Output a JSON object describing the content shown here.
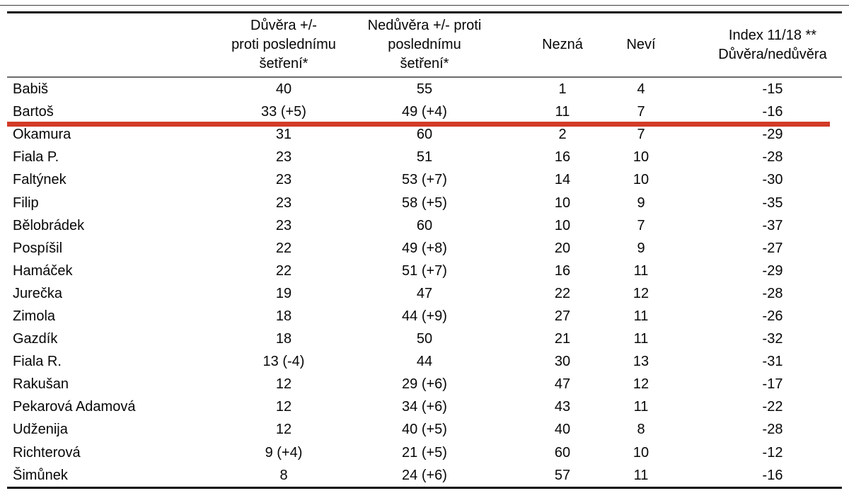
{
  "accent_color": "#d23b27",
  "chart_data": {
    "type": "table",
    "columns": [
      {
        "id": "name",
        "label_lines": [
          ""
        ]
      },
      {
        "id": "duvera",
        "label_lines": [
          "Důvěra +/-",
          "proti poslednímu",
          "šetření*"
        ]
      },
      {
        "id": "neduvera",
        "label_lines": [
          "Nedůvěra +/- proti",
          "poslednímu",
          "šetření*"
        ]
      },
      {
        "id": "nezna",
        "label_lines": [
          "Nezná"
        ]
      },
      {
        "id": "nevi",
        "label_lines": [
          "Neví"
        ]
      },
      {
        "id": "index",
        "label_lines": [
          "Index 11/18 **",
          "Důvěra/nedůvěra"
        ]
      }
    ],
    "rows": [
      [
        "Babiš",
        "40",
        "55",
        "1",
        "4",
        "-15"
      ],
      [
        "Bartoš",
        "33 (+5)",
        "49 (+4)",
        "11",
        "7",
        "-16"
      ],
      [
        "Okamura",
        "31",
        "60",
        "2",
        "7",
        "-29"
      ],
      [
        "Fiala P.",
        "23",
        "51",
        "16",
        "10",
        "-28"
      ],
      [
        "Faltýnek",
        "23",
        "53 (+7)",
        "14",
        "10",
        "-30"
      ],
      [
        "Filip",
        "23",
        "58 (+5)",
        "10",
        "9",
        "-35"
      ],
      [
        "Bělobrádek",
        "23",
        "60",
        "10",
        "7",
        "-37"
      ],
      [
        "Pospíšil",
        "22",
        "49 (+8)",
        "20",
        "9",
        "-27"
      ],
      [
        "Hamáček",
        "22",
        "51 (+7)",
        "16",
        "11",
        "-29"
      ],
      [
        "Jurečka",
        "19",
        "47",
        "22",
        "12",
        "-28"
      ],
      [
        "Zimola",
        "18",
        "44 (+9)",
        "27",
        "11",
        "-26"
      ],
      [
        "Gazdík",
        "18",
        "50",
        "21",
        "11",
        "-32"
      ],
      [
        "Fiala R.",
        "13 (-4)",
        "44",
        "30",
        "13",
        "-31"
      ],
      [
        "Rakušan",
        "12",
        "29 (+6)",
        "47",
        "12",
        "-17"
      ],
      [
        "Pekarová Adamová",
        "12",
        "34 (+6)",
        "43",
        "11",
        "-22"
      ],
      [
        "Udženija",
        "12",
        "40 (+5)",
        "40",
        "8",
        "-28"
      ],
      [
        "Richterová",
        "9 (+4)",
        "21 (+5)",
        "60",
        "10",
        "-12"
      ],
      [
        "Šimůnek",
        "8",
        "24 (+6)",
        "57",
        "11",
        "-16"
      ]
    ],
    "highlight": {
      "style": "thick-underline",
      "below_row": "Bartoš",
      "row_index": 1,
      "color": "#d23b27"
    },
    "layout": {
      "grid": "horizontal rules only: double top rule, thin header rule, thick bottom rule"
    }
  }
}
